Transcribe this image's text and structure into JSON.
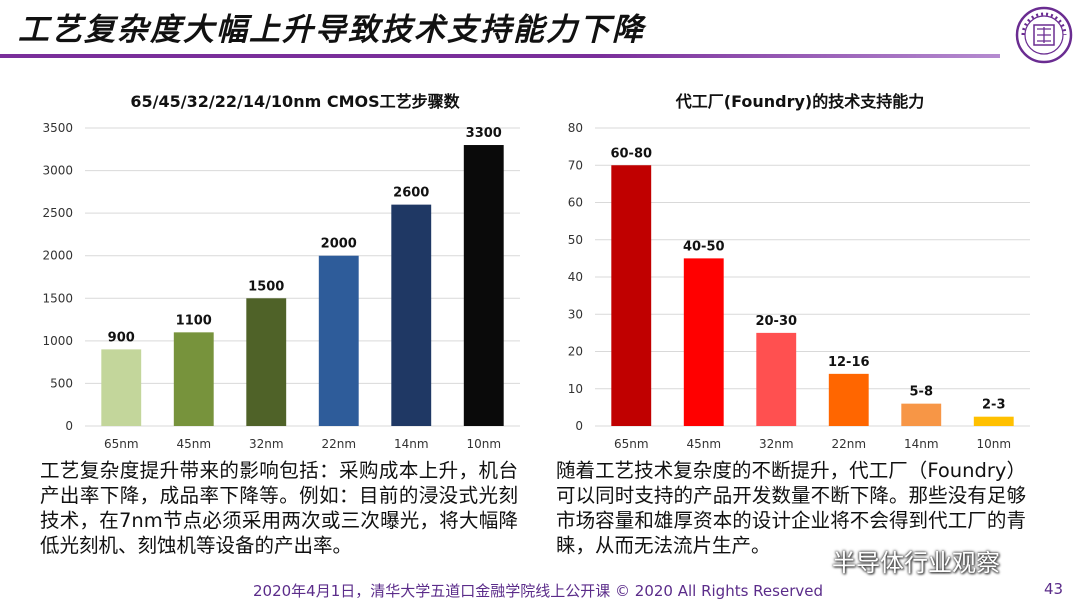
{
  "slide": {
    "title": "工艺复杂度大幅上升导致技术支持能力下降",
    "page_number": "43",
    "footer": "2020年4月1日，清华大学五道口金融学院线上公开课 © 2020 All Rights Reserved",
    "watermark": "半导体行业观察",
    "left_paragraph": "工艺复杂度提升带来的影响包括：采购成本上升，机台产出率下降，成品率下降等。例如：目前的浸没式光刻技术，在7nm节点必须采用两次或三次曝光，将大幅降低光刻机、刻蚀机等设备的产出率。",
    "right_paragraph": "随着工艺技术复杂度的不断提升，代工厂（Foundry）可以同时支持的产品开发数量不断下降。那些没有足够市场容量和雄厚资本的设计企业将不会得到代工厂的青睐，从而无法流片生产。"
  },
  "chart_data": [
    {
      "type": "bar",
      "title": "65/45/32/22/14/10nm CMOS工艺步骤数",
      "categories": [
        "65nm",
        "45nm",
        "32nm",
        "22nm",
        "14nm",
        "10nm"
      ],
      "values": [
        900,
        1100,
        1500,
        2000,
        2600,
        3300
      ],
      "data_labels": [
        "900",
        "1100",
        "1500",
        "2000",
        "2600",
        "3300"
      ],
      "colors": [
        "#c3d69b",
        "#77933c",
        "#4f6228",
        "#2e5c9a",
        "#1f3864",
        "#0a0a0a"
      ],
      "yticks": [
        "0",
        "500",
        "1000",
        "1500",
        "2000",
        "2500",
        "3000",
        "3500"
      ],
      "ylim": [
        0,
        3500
      ],
      "grid": true,
      "legend": "none"
    },
    {
      "type": "bar",
      "title": "代工厂(Foundry)的技术支持能力",
      "categories": [
        "65nm",
        "45nm",
        "32nm",
        "22nm",
        "14nm",
        "10nm"
      ],
      "values": [
        70,
        45,
        25,
        14,
        6,
        2.5
      ],
      "data_labels": [
        "60-80",
        "40-50",
        "20-30",
        "12-16",
        "5-8",
        "2-3"
      ],
      "colors": [
        "#c00000",
        "#ff0000",
        "#ff5050",
        "#ff6600",
        "#f79646",
        "#ffc000"
      ],
      "yticks": [
        "0",
        "10",
        "20",
        "30",
        "40",
        "50",
        "60",
        "70",
        "80"
      ],
      "ylim": [
        0,
        80
      ],
      "grid": true,
      "legend": "none"
    }
  ],
  "icons": {
    "logo": "tsinghua-seal-icon",
    "watermark": "wechat-icon"
  }
}
